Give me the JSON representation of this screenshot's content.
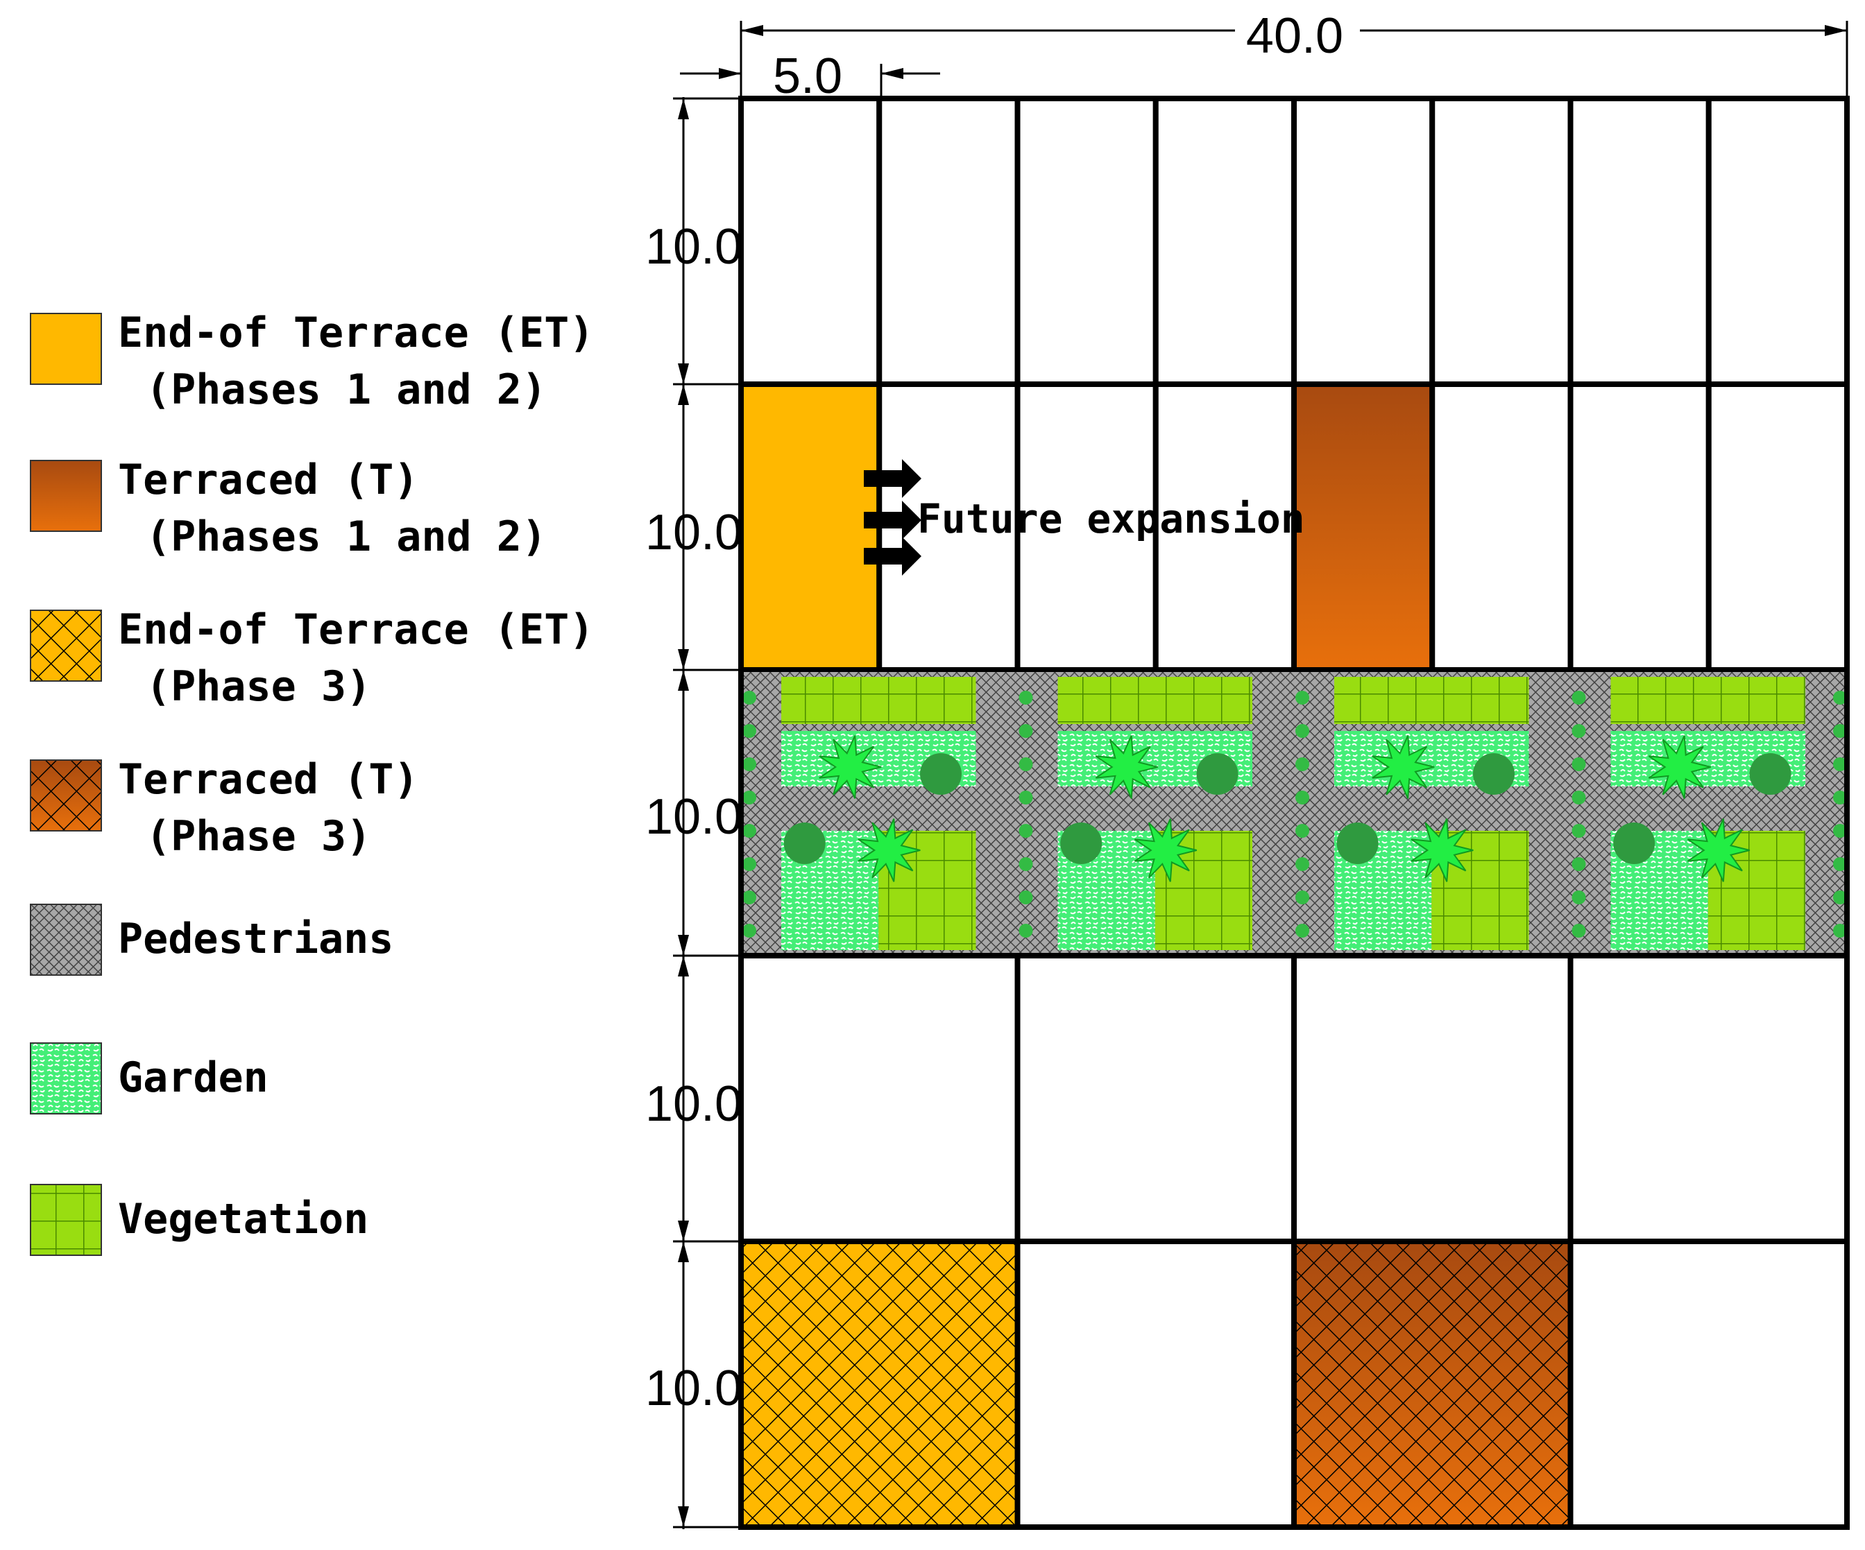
{
  "legend": [
    {
      "label": "End-of Terrace (ET)",
      "sublabel": "(Phases 1 and 2)",
      "pattern": "et-solid",
      "icon": "end-terrace-solid-swatch"
    },
    {
      "label": "Terraced (T)",
      "sublabel": "(Phases 1 and 2)",
      "pattern": "t-solid",
      "icon": "terraced-solid-swatch"
    },
    {
      "label": "End-of Terrace (ET)",
      "sublabel": "(Phase 3)",
      "pattern": "et-hatch",
      "icon": "end-terrace-hatched-swatch"
    },
    {
      "label": "Terraced (T)",
      "sublabel": "(Phase 3)",
      "pattern": "t-hatch",
      "icon": "terraced-hatched-swatch"
    },
    {
      "label": "Pedestrians",
      "sublabel": "",
      "pattern": "ped",
      "icon": "pedestrian-swatch"
    },
    {
      "label": "Garden",
      "sublabel": "",
      "pattern": "garden",
      "icon": "garden-swatch"
    },
    {
      "label": "Vegetation",
      "sublabel": "",
      "pattern": "veg",
      "icon": "vegetation-swatch"
    }
  ],
  "dimensions": {
    "total_width": "40.0",
    "unit_width": "5.0",
    "row_heights": [
      "10.0",
      "10.0",
      "10.0",
      "10.0",
      "10.0"
    ]
  },
  "annotation": "Future expansion",
  "plan": {
    "total_width_units": 40,
    "row_height_units": 10,
    "rows": [
      {
        "type": "plots",
        "unit_width": 5,
        "cells": [
          "empty",
          "empty",
          "empty",
          "empty",
          "empty",
          "empty",
          "empty",
          "empty"
        ]
      },
      {
        "type": "plots",
        "unit_width": 5,
        "cells": [
          "et-solid",
          "empty",
          "empty",
          "empty",
          "t-solid",
          "empty",
          "empty",
          "empty"
        ]
      },
      {
        "type": "courtyard",
        "blocks": 4
      },
      {
        "type": "plots",
        "unit_width": 10,
        "cells": [
          "empty",
          "empty",
          "empty",
          "empty"
        ]
      },
      {
        "type": "plots",
        "unit_width": 10,
        "cells": [
          "et-hatch",
          "empty",
          "t-hatch",
          "empty"
        ]
      }
    ]
  },
  "colors": {
    "et": "#FFB800",
    "t_light": "#E06A10",
    "t_dark": "#A84A10",
    "pedestrian": "#9a9a9a",
    "garden": "#33ee66",
    "vegetation": "#99dd11",
    "tree": "#2f9a3f",
    "shrub": "#22ee44"
  }
}
